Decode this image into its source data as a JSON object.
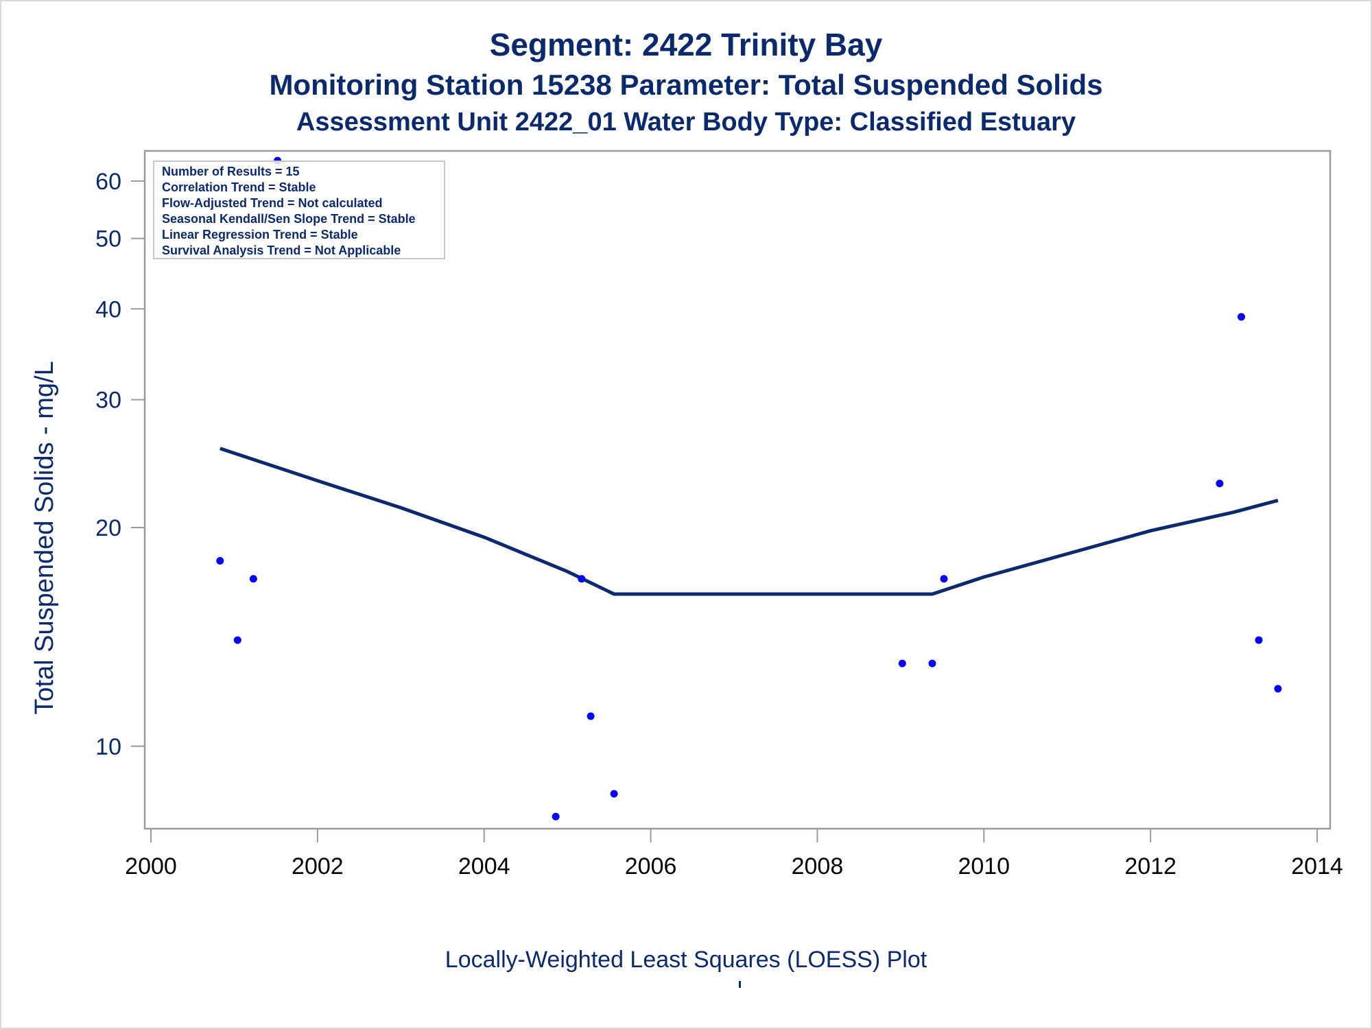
{
  "titles": {
    "line1": "Segment: 2422  Trinity Bay",
    "line2": "Monitoring Station 15238 Parameter: Total Suspended Solids",
    "line3": "Assessment Unit 2422_01   Water Body Type: Classified Estuary"
  },
  "footnote": "Locally-Weighted Least Squares (LOESS) Plot",
  "inset": {
    "lines": [
      "Number of Results = 15",
      "Correlation Trend = Stable",
      "Flow-Adjusted Trend = Not calculated",
      "Seasonal Kendall/Sen Slope Trend = Stable",
      "Linear Regression Trend = Stable",
      "Survival Analysis Trend = Not Applicable"
    ]
  },
  "colors": {
    "title": "#0b2a6e",
    "axis_text": "#0b2a6e",
    "x_tick_text": "#000000",
    "points": "#0000ff",
    "loess_line": "#0b2a6e",
    "frame": "#9a9a9a"
  },
  "chart_data": {
    "type": "scatter",
    "ylabel": "Total Suspended Solids - mg/L",
    "xlabel": "",
    "yscale": "log",
    "xlim": [
      2000,
      2014
    ],
    "ylim": [
      7.7,
      66
    ],
    "xticks": [
      2000,
      2002,
      2004,
      2006,
      2008,
      2010,
      2012,
      2014
    ],
    "yticks": [
      10,
      20,
      30,
      40,
      50,
      60
    ],
    "grid": false,
    "points": [
      {
        "x": 2000.83,
        "y": 18
      },
      {
        "x": 2001.04,
        "y": 14
      },
      {
        "x": 2001.23,
        "y": 17
      },
      {
        "x": 2001.52,
        "y": 64
      },
      {
        "x": 2004.86,
        "y": 8
      },
      {
        "x": 2005.17,
        "y": 17
      },
      {
        "x": 2005.28,
        "y": 11
      },
      {
        "x": 2005.56,
        "y": 8.6
      },
      {
        "x": 2009.02,
        "y": 13
      },
      {
        "x": 2009.38,
        "y": 13
      },
      {
        "x": 2009.52,
        "y": 17
      },
      {
        "x": 2012.83,
        "y": 23
      },
      {
        "x": 2013.09,
        "y": 39
      },
      {
        "x": 2013.3,
        "y": 14
      },
      {
        "x": 2013.53,
        "y": 12
      }
    ],
    "loess": [
      {
        "x": 2000.83,
        "y": 25.7
      },
      {
        "x": 2002.0,
        "y": 23.2
      },
      {
        "x": 2003.0,
        "y": 21.3
      },
      {
        "x": 2004.0,
        "y": 19.4
      },
      {
        "x": 2005.0,
        "y": 17.4
      },
      {
        "x": 2005.56,
        "y": 16.2
      },
      {
        "x": 2007.5,
        "y": 16.2
      },
      {
        "x": 2009.38,
        "y": 16.2
      },
      {
        "x": 2010.0,
        "y": 17.1
      },
      {
        "x": 2011.0,
        "y": 18.4
      },
      {
        "x": 2012.0,
        "y": 19.8
      },
      {
        "x": 2013.0,
        "y": 21.0
      },
      {
        "x": 2013.53,
        "y": 21.8
      }
    ]
  }
}
